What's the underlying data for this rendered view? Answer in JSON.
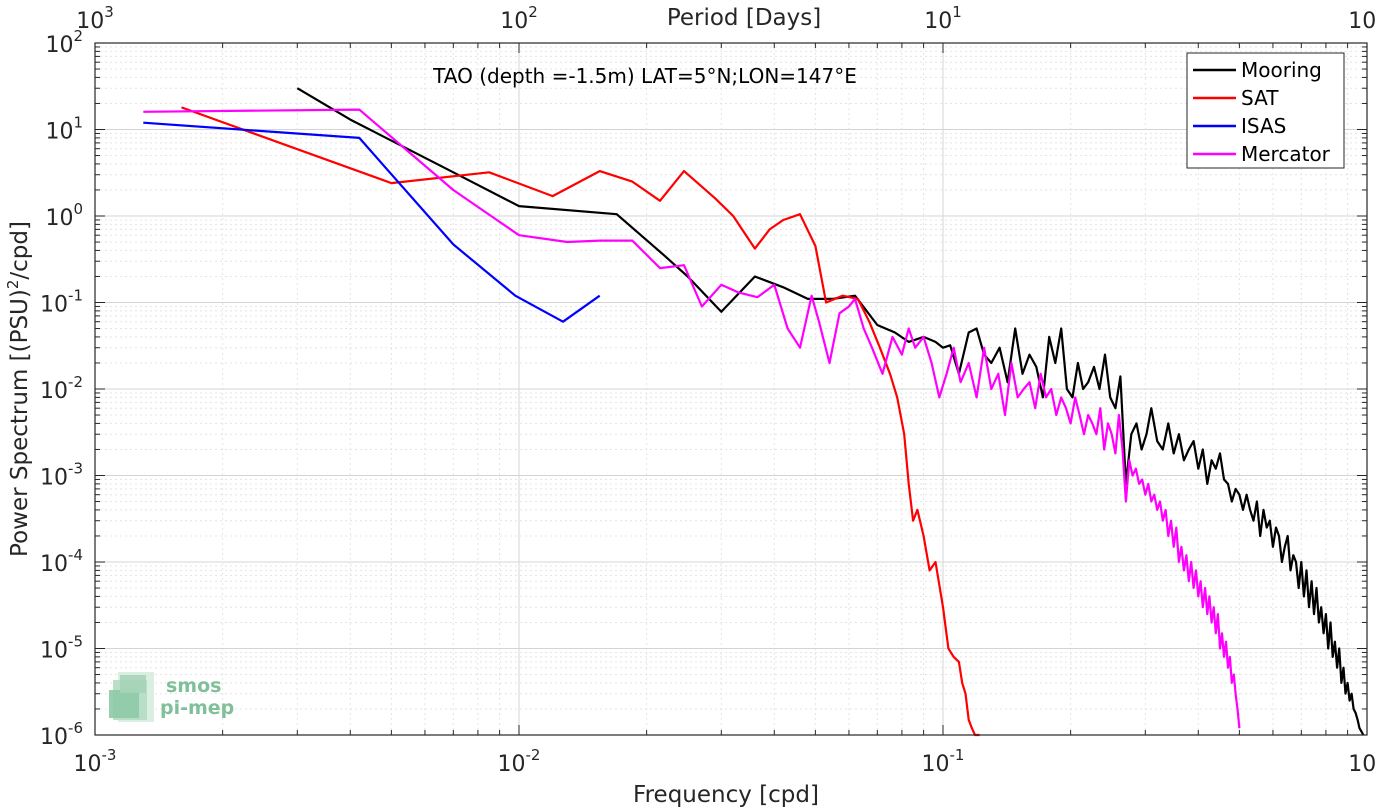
{
  "chart_data": {
    "type": "line",
    "title": "TAO (depth =-1.5m) LAT=5°N;LON=147°E",
    "xlabel": "Frequency [cpd]",
    "ylabel_main": "Power Spectrum [(PSU)",
    "ylabel_sup": "2",
    "ylabel_tail": "/cpd]",
    "top_axis_label": "Period [Days]",
    "x_scale": "log",
    "y_scale": "log",
    "xlim": [
      0.001,
      1
    ],
    "ylim": [
      1e-06,
      100
    ],
    "grid": true,
    "legend_position": "top-right",
    "x_ticks": [
      {
        "value": 0.001,
        "base": "10",
        "exp": "-3"
      },
      {
        "value": 0.01,
        "base": "10",
        "exp": "-2"
      },
      {
        "value": 0.1,
        "base": "10",
        "exp": "-1"
      },
      {
        "value": 1,
        "base": "10",
        "exp": "0"
      }
    ],
    "y_ticks": [
      {
        "value": 1e-06,
        "base": "10",
        "exp": "-6"
      },
      {
        "value": 1e-05,
        "base": "10",
        "exp": "-5"
      },
      {
        "value": 0.0001,
        "base": "10",
        "exp": "-4"
      },
      {
        "value": 0.001,
        "base": "10",
        "exp": "-3"
      },
      {
        "value": 0.01,
        "base": "10",
        "exp": "-2"
      },
      {
        "value": 0.1,
        "base": "10",
        "exp": "-1"
      },
      {
        "value": 1,
        "base": "10",
        "exp": "0"
      },
      {
        "value": 10,
        "base": "10",
        "exp": "1"
      },
      {
        "value": 100,
        "base": "10",
        "exp": "2"
      }
    ],
    "top_ticks": [
      {
        "value": 0.001,
        "base": "10",
        "exp": "3"
      },
      {
        "value": 0.01,
        "base": "10",
        "exp": "2"
      },
      {
        "value": 0.1,
        "base": "10",
        "exp": "1"
      },
      {
        "value": 1,
        "base": "10",
        "exp": "0"
      }
    ],
    "series": [
      {
        "name": "Mooring",
        "color": "#000000",
        "x": [
          0.003,
          0.004,
          0.007,
          0.01,
          0.017,
          0.022,
          0.025,
          0.03,
          0.036,
          0.042,
          0.048,
          0.055,
          0.062,
          0.07,
          0.077,
          0.083,
          0.09,
          0.096,
          0.1,
          0.104,
          0.109,
          0.115,
          0.12,
          0.125,
          0.13,
          0.136,
          0.142,
          0.148,
          0.154,
          0.16,
          0.166,
          0.172,
          0.178,
          0.184,
          0.19,
          0.196,
          0.202,
          0.208,
          0.214,
          0.22,
          0.227,
          0.234,
          0.241,
          0.248,
          0.255,
          0.262,
          0.27,
          0.278,
          0.286,
          0.294,
          0.302,
          0.31,
          0.32,
          0.33,
          0.34,
          0.35,
          0.36,
          0.37,
          0.38,
          0.39,
          0.4,
          0.41,
          0.42,
          0.43,
          0.44,
          0.45,
          0.46,
          0.47,
          0.48,
          0.49,
          0.5,
          0.51,
          0.52,
          0.53,
          0.54,
          0.55,
          0.56,
          0.57,
          0.58,
          0.59,
          0.6,
          0.61,
          0.62,
          0.63,
          0.64,
          0.65,
          0.66,
          0.67,
          0.68,
          0.69,
          0.7,
          0.71,
          0.72,
          0.73,
          0.74,
          0.75,
          0.76,
          0.77,
          0.78,
          0.79,
          0.8,
          0.81,
          0.82,
          0.83,
          0.84,
          0.85,
          0.86,
          0.87,
          0.88,
          0.89,
          0.9,
          0.91,
          0.92,
          0.93,
          0.94,
          0.95,
          0.96,
          0.97,
          0.98
        ],
        "y": [
          30,
          13,
          3.2,
          1.3,
          1.05,
          0.35,
          0.2,
          0.078,
          0.2,
          0.15,
          0.11,
          0.11,
          0.12,
          0.055,
          0.045,
          0.035,
          0.04,
          0.035,
          0.03,
          0.032,
          0.015,
          0.045,
          0.05,
          0.025,
          0.02,
          0.03,
          0.012,
          0.05,
          0.015,
          0.025,
          0.018,
          0.008,
          0.04,
          0.02,
          0.05,
          0.01,
          0.008,
          0.02,
          0.01,
          0.012,
          0.018,
          0.01,
          0.025,
          0.008,
          0.006,
          0.014,
          0.0008,
          0.003,
          0.004,
          0.002,
          0.003,
          0.006,
          0.0025,
          0.002,
          0.004,
          0.0018,
          0.003,
          0.0015,
          0.002,
          0.0025,
          0.0012,
          0.002,
          0.0008,
          0.0015,
          0.0012,
          0.0018,
          0.0009,
          0.0008,
          0.0005,
          0.0007,
          0.0006,
          0.0004,
          0.0006,
          0.0004,
          0.0003,
          0.0005,
          0.0002,
          0.0004,
          0.00025,
          0.0003,
          0.00015,
          0.00025,
          0.0002,
          0.0001,
          0.00015,
          0.0002,
          8e-05,
          0.00012,
          0.0001,
          5e-05,
          0.0001,
          4e-05,
          8e-05,
          3e-05,
          6e-05,
          2.5e-05,
          5e-05,
          2e-05,
          3e-05,
          1.5e-05,
          2.5e-05,
          1e-05,
          2e-05,
          8e-06,
          1.2e-05,
          6e-06,
          1e-05,
          4e-06,
          6e-06,
          3e-06,
          4e-06,
          2.5e-06,
          3e-06,
          2e-06,
          1.8e-06,
          1.5e-06,
          1.2e-06,
          1.1e-06,
          1e-06
        ]
      },
      {
        "name": "SAT",
        "color": "#ff0000",
        "x": [
          0.0016,
          0.005,
          0.0085,
          0.012,
          0.0155,
          0.0185,
          0.0215,
          0.0245,
          0.029,
          0.032,
          0.036,
          0.039,
          0.042,
          0.046,
          0.05,
          0.053,
          0.058,
          0.063,
          0.067,
          0.071,
          0.075,
          0.078,
          0.081,
          0.083,
          0.085,
          0.087,
          0.09,
          0.093,
          0.096,
          0.1,
          0.103,
          0.106,
          0.109,
          0.111,
          0.113,
          0.115,
          0.117,
          0.119,
          0.12,
          0.122
        ],
        "y": [
          18,
          2.4,
          3.2,
          1.7,
          3.3,
          2.5,
          1.5,
          3.3,
          1.6,
          1.0,
          0.42,
          0.7,
          0.9,
          1.05,
          0.45,
          0.1,
          0.12,
          0.11,
          0.06,
          0.03,
          0.015,
          0.008,
          0.003,
          0.0008,
          0.0003,
          0.0004,
          0.0002,
          8e-05,
          0.0001,
          3e-05,
          1e-05,
          8e-06,
          7e-06,
          4e-06,
          3e-06,
          1.5e-06,
          1.2e-06,
          8e-07,
          7e-07,
          9e-07
        ]
      },
      {
        "name": "ISAS",
        "color": "#0000ff",
        "x": [
          0.0013,
          0.0042,
          0.007,
          0.0098,
          0.0127,
          0.0155
        ],
        "y": [
          12,
          8,
          0.47,
          0.12,
          0.06,
          0.12
        ]
      },
      {
        "name": "Mercator",
        "color": "#ff00ff",
        "x": [
          0.0013,
          0.0042,
          0.007,
          0.01,
          0.013,
          0.0155,
          0.0185,
          0.0215,
          0.0245,
          0.027,
          0.03,
          0.033,
          0.0365,
          0.04,
          0.043,
          0.046,
          0.049,
          0.051,
          0.054,
          0.057,
          0.06,
          0.062,
          0.065,
          0.068,
          0.072,
          0.076,
          0.08,
          0.083,
          0.086,
          0.09,
          0.094,
          0.098,
          0.102,
          0.106,
          0.11,
          0.115,
          0.12,
          0.125,
          0.13,
          0.135,
          0.14,
          0.145,
          0.15,
          0.155,
          0.16,
          0.165,
          0.17,
          0.175,
          0.18,
          0.185,
          0.19,
          0.195,
          0.2,
          0.205,
          0.21,
          0.215,
          0.22,
          0.225,
          0.23,
          0.235,
          0.24,
          0.245,
          0.25,
          0.255,
          0.26,
          0.265,
          0.27,
          0.275,
          0.28,
          0.285,
          0.29,
          0.295,
          0.3,
          0.305,
          0.31,
          0.315,
          0.32,
          0.325,
          0.33,
          0.335,
          0.34,
          0.345,
          0.35,
          0.355,
          0.36,
          0.365,
          0.37,
          0.375,
          0.38,
          0.385,
          0.39,
          0.395,
          0.4,
          0.405,
          0.41,
          0.415,
          0.42,
          0.425,
          0.43,
          0.435,
          0.44,
          0.445,
          0.45,
          0.455,
          0.46,
          0.465,
          0.47,
          0.475,
          0.48,
          0.485,
          0.49,
          0.495,
          0.5
        ],
        "y": [
          16,
          17,
          2.0,
          0.6,
          0.5,
          0.52,
          0.52,
          0.25,
          0.27,
          0.09,
          0.16,
          0.13,
          0.115,
          0.16,
          0.05,
          0.03,
          0.12,
          0.06,
          0.02,
          0.075,
          0.09,
          0.11,
          0.05,
          0.03,
          0.015,
          0.04,
          0.025,
          0.05,
          0.03,
          0.04,
          0.02,
          0.008,
          0.015,
          0.03,
          0.012,
          0.02,
          0.008,
          0.03,
          0.01,
          0.015,
          0.005,
          0.02,
          0.008,
          0.01,
          0.012,
          0.006,
          0.015,
          0.008,
          0.01,
          0.005,
          0.008,
          0.006,
          0.004,
          0.008,
          0.005,
          0.003,
          0.005,
          0.004,
          0.003,
          0.006,
          0.002,
          0.004,
          0.003,
          0.0018,
          0.005,
          0.002,
          0.0005,
          0.0015,
          0.001,
          0.0012,
          0.0008,
          0.0009,
          0.0006,
          0.0008,
          0.0005,
          0.0006,
          0.0004,
          0.0005,
          0.0003,
          0.0004,
          0.0002,
          0.0003,
          0.00015,
          0.00025,
          0.0001,
          0.00015,
          8e-05,
          0.00012,
          6e-05,
          0.0001,
          5e-05,
          8e-05,
          4e-05,
          6e-05,
          3e-05,
          5e-05,
          2.5e-05,
          4e-05,
          2e-05,
          3e-05,
          1.5e-05,
          2.5e-05,
          1e-05,
          1.5e-05,
          8e-06,
          1.2e-05,
          6e-06,
          8e-06,
          4e-06,
          5e-06,
          3e-06,
          2e-06,
          1.2e-06
        ]
      }
    ]
  },
  "logo": {
    "line1": "smos",
    "line2": "pi-mep"
  }
}
